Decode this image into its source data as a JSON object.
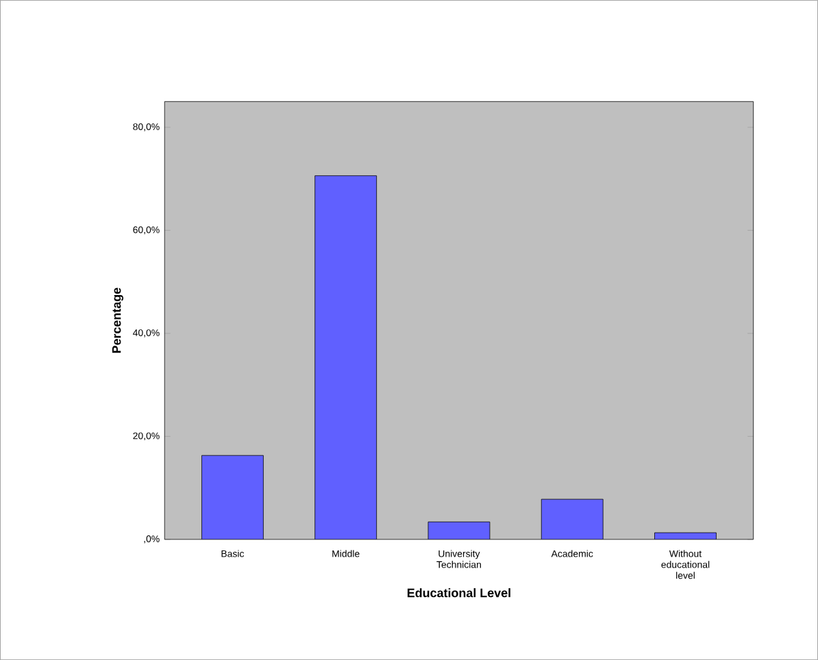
{
  "chart_data": {
    "type": "bar",
    "xlabel": "Educational Level",
    "ylabel": "Percentage",
    "categories": [
      "Basic",
      "Middle",
      "University Technician",
      "Academic",
      "Without educational level"
    ],
    "values": [
      16.3,
      70.6,
      3.4,
      7.8,
      1.3
    ],
    "color": "#6060ff",
    "ylim": [
      0,
      85
    ],
    "yticks": [
      {
        "value": 0,
        "label": ",0%"
      },
      {
        "value": 20,
        "label": "20,0%"
      },
      {
        "value": 40,
        "label": "40,0%"
      },
      {
        "value": 60,
        "label": "60,0%"
      },
      {
        "value": 80,
        "label": "80,0%"
      }
    ]
  }
}
